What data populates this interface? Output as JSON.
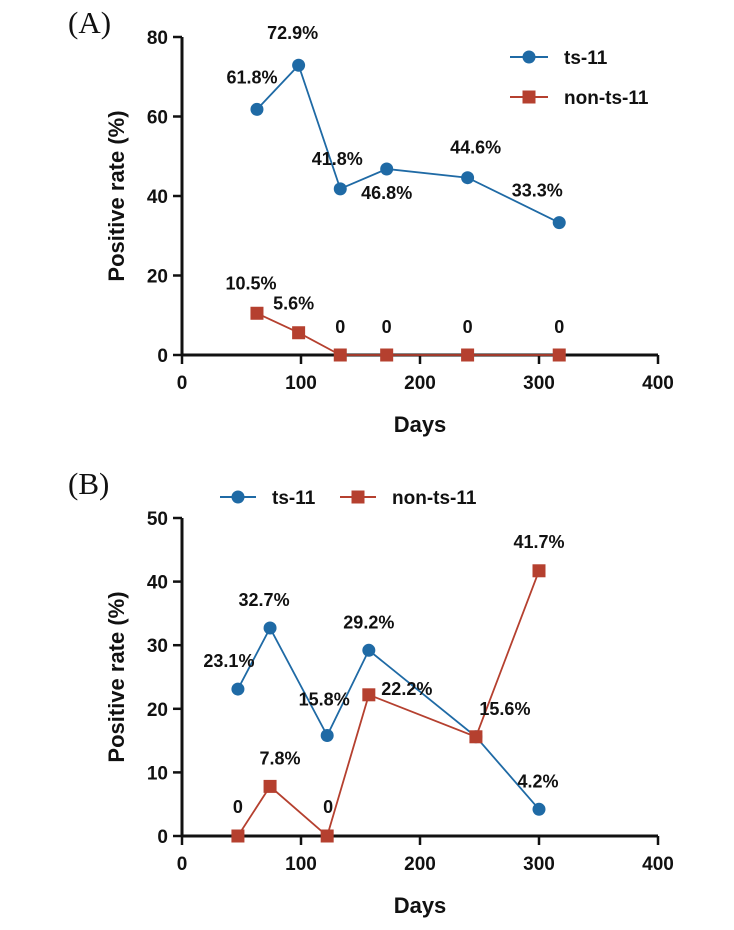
{
  "colors": {
    "ts11": "#1f6aa5",
    "non_ts11": "#b5402f"
  },
  "chart_data": [
    {
      "panel_label": "(A)",
      "type": "line",
      "xlabel": "Days",
      "ylabel": "Positive rate (%)",
      "xlim": [
        0,
        400
      ],
      "ylim": [
        0,
        80
      ],
      "xticks": [
        "0",
        "100",
        "200",
        "300",
        "400"
      ],
      "yticks": [
        "0",
        "20",
        "40",
        "60",
        "80"
      ],
      "grid": false,
      "legend_position": "top-right-stacked",
      "series": [
        {
          "name": "ts-11",
          "marker": "circle",
          "color": "#1f6aa5",
          "x": [
            63,
            98,
            133,
            172,
            240,
            317
          ],
          "y": [
            61.8,
            72.9,
            41.8,
            46.8,
            44.6,
            33.3
          ],
          "labels": [
            "61.8%",
            "72.9%",
            "41.8%",
            "46.8%",
            "44.6%",
            "33.3%"
          ]
        },
        {
          "name": "non-ts-11",
          "marker": "square",
          "color": "#b5402f",
          "x": [
            63,
            98,
            133,
            172,
            240,
            317
          ],
          "y": [
            10.5,
            5.6,
            0,
            0,
            0,
            0
          ],
          "labels": [
            "10.5%",
            "5.6%",
            "0",
            "0",
            "0",
            "0"
          ]
        }
      ]
    },
    {
      "panel_label": "(B)",
      "type": "line",
      "xlabel": "Days",
      "ylabel": "Positive rate (%)",
      "xlim": [
        0,
        400
      ],
      "ylim": [
        0,
        50
      ],
      "xticks": [
        "0",
        "100",
        "200",
        "300",
        "400"
      ],
      "yticks": [
        "0",
        "10",
        "20",
        "30",
        "40",
        "50"
      ],
      "grid": false,
      "legend_position": "top-center-horizontal",
      "series": [
        {
          "name": "ts-11",
          "marker": "circle",
          "color": "#1f6aa5",
          "x": [
            47,
            74,
            122,
            157,
            247,
            300
          ],
          "y": [
            23.1,
            32.7,
            15.8,
            29.2,
            15.6,
            4.2
          ],
          "labels": [
            "23.1%",
            "32.7%",
            "15.8%",
            "29.2%",
            "15.6%",
            "4.2%"
          ]
        },
        {
          "name": "non-ts-11",
          "marker": "square",
          "color": "#b5402f",
          "x": [
            47,
            74,
            122,
            157,
            247,
            300
          ],
          "y": [
            0,
            7.8,
            0,
            22.2,
            15.6,
            41.7
          ],
          "labels": [
            "0",
            "7.8%",
            "0",
            "22.2%",
            "",
            "41.7%"
          ]
        }
      ]
    }
  ]
}
